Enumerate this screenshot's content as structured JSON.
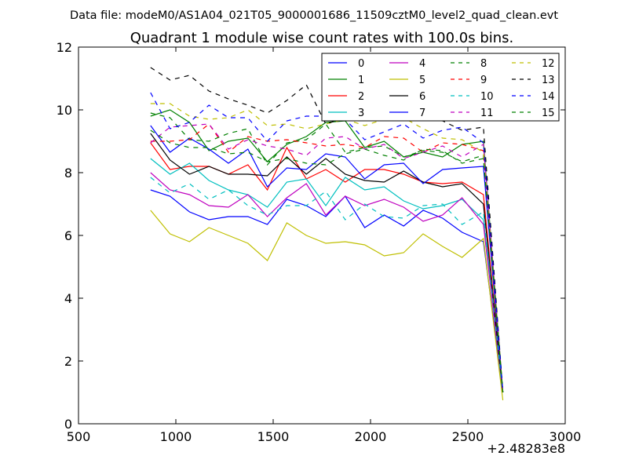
{
  "chart_data": {
    "type": "line",
    "suptitle": "Data file: modeM0/AS1A04_021T05_9000001686_11509cztM0_level2_quad_clean.evt",
    "title": "Quadrant 1 module wise count rates with 100.0s bins.",
    "xlabel": "",
    "ylabel": "",
    "x_offset_label": "+2.48283e8",
    "xlim": [
      500,
      3000
    ],
    "ylim": [
      0,
      12
    ],
    "xticks": [
      500,
      1000,
      1500,
      2000,
      2500,
      3000
    ],
    "yticks": [
      0,
      2,
      4,
      6,
      8,
      10,
      12
    ],
    "grid": false,
    "legend_position": "top-right",
    "legend_columns": 4,
    "x": [
      870,
      970,
      1070,
      1170,
      1270,
      1370,
      1470,
      1570,
      1670,
      1770,
      1870,
      1970,
      2070,
      2170,
      2270,
      2370,
      2470,
      2580,
      2680
    ],
    "series": [
      {
        "name": "0",
        "color": "#0000ff",
        "dash": "solid",
        "values": [
          7.45,
          7.25,
          6.75,
          6.5,
          6.6,
          6.6,
          6.35,
          7.15,
          6.95,
          6.6,
          7.25,
          6.25,
          6.65,
          6.3,
          6.8,
          6.55,
          6.1,
          5.8,
          1.0
        ]
      },
      {
        "name": "1",
        "color": "#008000",
        "dash": "solid",
        "values": [
          9.8,
          10.0,
          9.6,
          8.7,
          9.0,
          9.1,
          8.35,
          8.9,
          9.15,
          9.6,
          9.65,
          8.8,
          9.0,
          8.5,
          8.65,
          8.5,
          8.9,
          9.0,
          1.0
        ]
      },
      {
        "name": "2",
        "color": "#ff0000",
        "dash": "solid",
        "values": [
          8.95,
          8.1,
          8.2,
          8.2,
          7.95,
          8.25,
          7.45,
          8.8,
          7.8,
          8.1,
          7.7,
          8.1,
          8.1,
          7.95,
          7.7,
          7.65,
          7.7,
          7.3,
          1.0
        ]
      },
      {
        "name": "3",
        "color": "#00bfbf",
        "dash": "solid",
        "values": [
          8.45,
          7.95,
          8.3,
          7.75,
          7.45,
          7.3,
          6.9,
          7.7,
          7.8,
          6.95,
          7.85,
          7.45,
          7.55,
          7.1,
          6.85,
          6.95,
          7.15,
          6.5,
          1.0
        ]
      },
      {
        "name": "4",
        "color": "#bf00bf",
        "dash": "solid",
        "values": [
          8.0,
          7.45,
          7.3,
          6.95,
          6.9,
          7.3,
          6.6,
          7.2,
          7.65,
          6.65,
          7.25,
          6.95,
          7.15,
          6.9,
          6.45,
          6.65,
          7.2,
          6.35,
          1.0
        ]
      },
      {
        "name": "5",
        "color": "#bfbf00",
        "dash": "solid",
        "values": [
          6.8,
          6.05,
          5.8,
          6.25,
          6.0,
          5.75,
          5.2,
          6.4,
          6.0,
          5.75,
          5.8,
          5.7,
          5.35,
          5.45,
          6.05,
          5.65,
          5.3,
          5.9,
          0.75
        ]
      },
      {
        "name": "6",
        "color": "#000000",
        "dash": "solid",
        "values": [
          9.25,
          8.4,
          7.95,
          8.2,
          7.95,
          7.95,
          7.9,
          8.5,
          7.95,
          8.45,
          7.95,
          7.75,
          7.7,
          8.05,
          7.7,
          7.55,
          7.65,
          7.0,
          1.0
        ]
      },
      {
        "name": "7",
        "color": "#0000ff",
        "dash": "solid",
        "values": [
          9.5,
          8.65,
          9.1,
          8.75,
          8.3,
          8.75,
          7.55,
          8.15,
          8.1,
          8.6,
          8.5,
          7.8,
          8.25,
          8.3,
          7.65,
          8.1,
          8.15,
          8.2,
          1.0
        ]
      },
      {
        "name": "8",
        "color": "#008000",
        "dash": "dashed",
        "values": [
          9.9,
          9.75,
          9.05,
          9.0,
          9.25,
          9.4,
          8.25,
          8.95,
          9.05,
          9.55,
          8.65,
          8.8,
          8.85,
          8.5,
          8.7,
          8.65,
          8.35,
          8.55,
          1.0
        ]
      },
      {
        "name": "9",
        "color": "#ff0000",
        "dash": "dashed",
        "values": [
          9.0,
          9.0,
          9.05,
          9.55,
          8.65,
          9.15,
          9.0,
          9.05,
          8.95,
          8.85,
          8.9,
          8.8,
          9.15,
          9.1,
          8.65,
          8.95,
          8.9,
          8.7,
          1.0
        ]
      },
      {
        "name": "10",
        "color": "#00bfbf",
        "dash": "dashed",
        "values": [
          7.85,
          7.35,
          7.65,
          7.15,
          7.45,
          6.95,
          6.65,
          6.95,
          6.95,
          7.4,
          6.5,
          7.0,
          6.6,
          6.55,
          6.95,
          7.0,
          6.35,
          6.75,
          1.0
        ]
      },
      {
        "name": "11",
        "color": "#bf00bf",
        "dash": "dashed",
        "values": [
          8.95,
          9.45,
          9.5,
          9.55,
          8.75,
          9.05,
          8.85,
          8.75,
          8.55,
          9.1,
          9.15,
          8.75,
          8.9,
          8.45,
          8.65,
          8.85,
          8.5,
          8.9,
          1.0
        ]
      },
      {
        "name": "12",
        "color": "#bfbf00",
        "dash": "dashed",
        "values": [
          10.2,
          10.2,
          9.8,
          9.7,
          9.75,
          10.0,
          9.5,
          9.55,
          9.4,
          9.55,
          9.7,
          9.5,
          9.7,
          9.75,
          9.4,
          9.1,
          9.05,
          8.65,
          1.0
        ]
      },
      {
        "name": "13",
        "color": "#000000",
        "dash": "dashed",
        "values": [
          11.35,
          10.95,
          11.1,
          10.6,
          10.35,
          10.15,
          9.9,
          10.3,
          10.8,
          9.55,
          9.75,
          10.75,
          10.15,
          9.75,
          9.7,
          9.65,
          9.35,
          9.45,
          1.0
        ]
      },
      {
        "name": "14",
        "color": "#0000ff",
        "dash": "dashed",
        "values": [
          10.55,
          9.4,
          9.6,
          10.15,
          9.75,
          9.75,
          9.0,
          9.65,
          9.8,
          9.8,
          9.7,
          9.05,
          9.3,
          9.55,
          9.1,
          9.35,
          9.45,
          8.95,
          1.0
        ]
      },
      {
        "name": "15",
        "color": "#008000",
        "dash": "dashed",
        "values": [
          9.35,
          8.95,
          8.8,
          8.8,
          8.6,
          8.65,
          8.35,
          8.45,
          8.3,
          8.25,
          8.6,
          8.75,
          8.55,
          8.4,
          8.75,
          8.7,
          8.3,
          8.45,
          1.0
        ]
      }
    ]
  }
}
